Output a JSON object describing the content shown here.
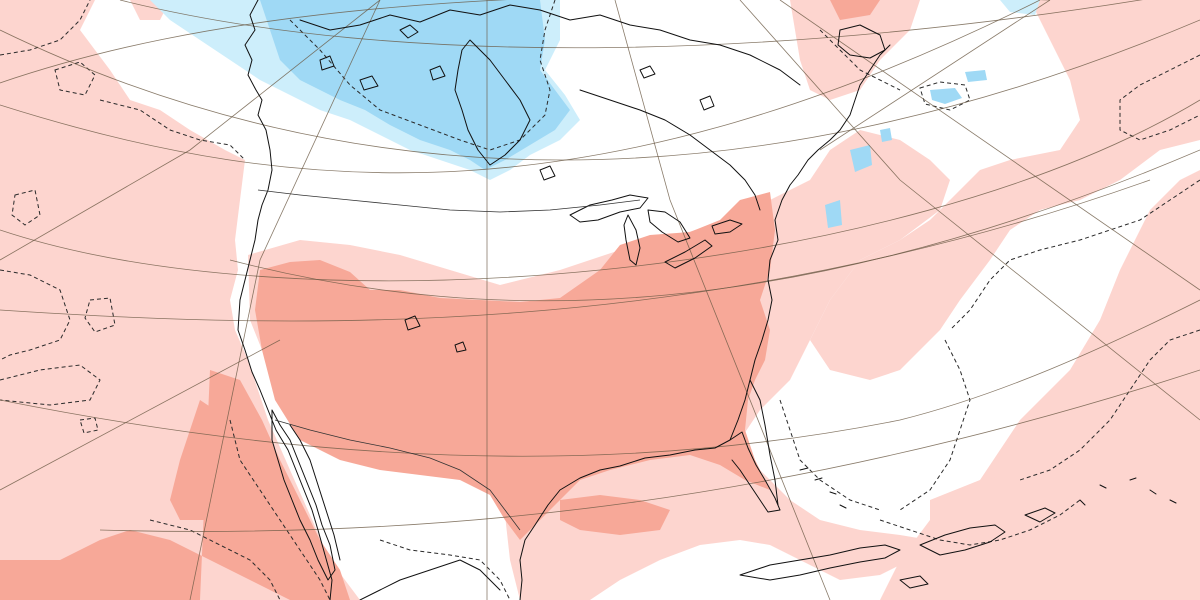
{
  "map": {
    "colors": {
      "background": "#ffffff",
      "warm_light": "#fdd5cf",
      "warm_medium": "#f7a898",
      "cold_light": "#cdeefb",
      "cold_medium": "#9fd9f5",
      "coastline": "#111111",
      "graticule": "#6b5a45"
    },
    "anomaly_levels": [
      "warm-light",
      "warm-medium",
      "cold-light",
      "cold-medium",
      "neutral"
    ]
  }
}
